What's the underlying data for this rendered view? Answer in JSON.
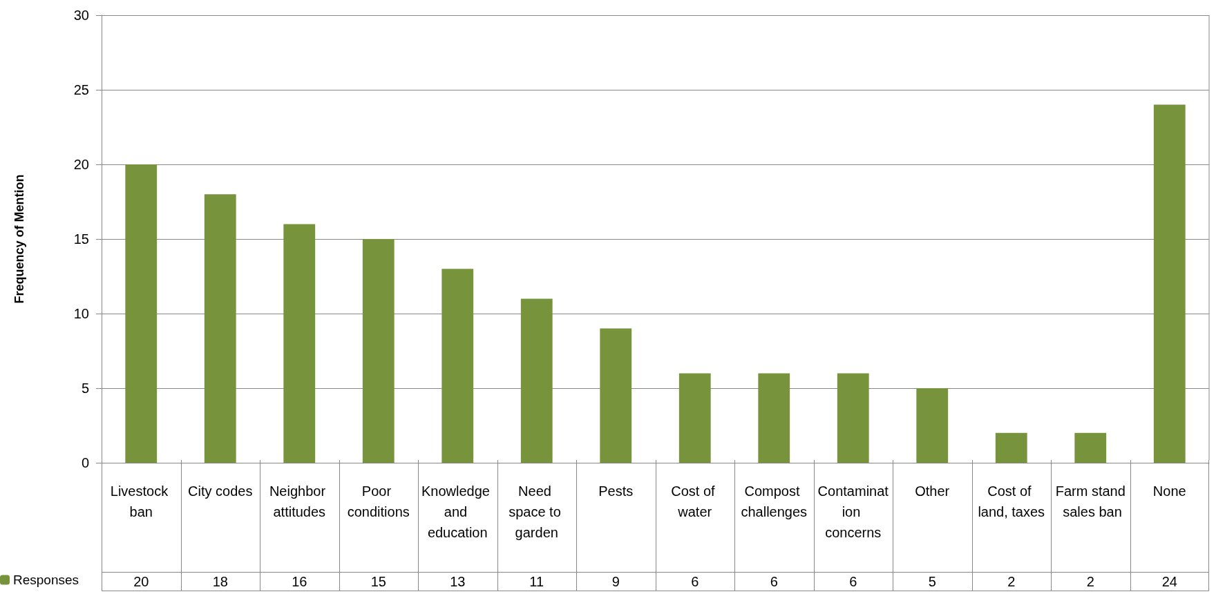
{
  "chart_data": {
    "type": "bar",
    "ylabel": "Frequency of Mention",
    "categories": [
      "Livestock ban",
      "City codes",
      "Neighbor attitudes",
      "Poor conditions",
      "Knowledge and education",
      "Need space to garden",
      "Pests",
      "Cost of water",
      "Compost challenges",
      "Contamination concerns",
      "Other",
      "Cost of land, taxes",
      "Farm stand sales ban",
      "None"
    ],
    "series": [
      {
        "name": "Responses",
        "color": "#77933c",
        "values": [
          20,
          18,
          16,
          15,
          13,
          11,
          9,
          6,
          6,
          6,
          5,
          2,
          2,
          24
        ]
      }
    ],
    "ylim": [
      0,
      30
    ],
    "yticks": [
      0,
      5,
      10,
      15,
      20,
      25,
      30
    ],
    "grid": "y",
    "legend": "bottom left",
    "data_labels": true
  }
}
